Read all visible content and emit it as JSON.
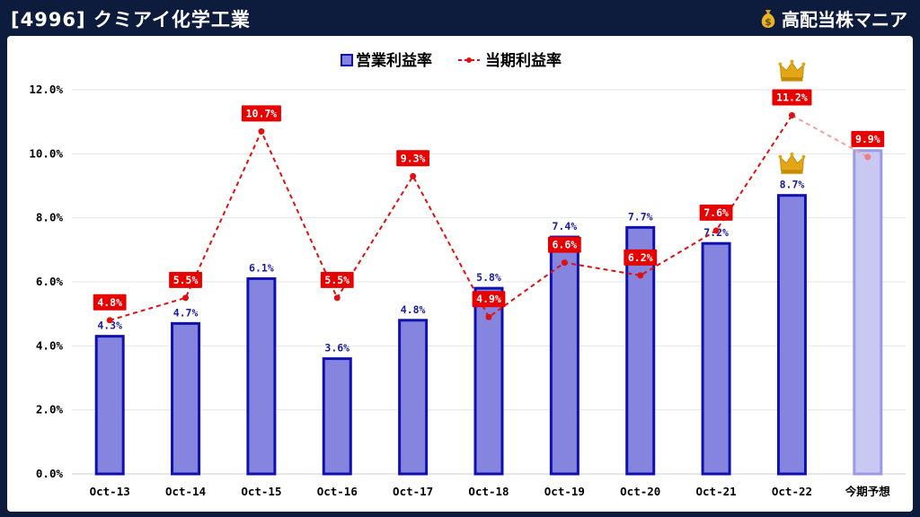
{
  "header": {
    "title": "[4996] クミアイ化学工業",
    "brand": "高配当株マニア",
    "brand_icon": "money-bag-icon"
  },
  "chart_data": {
    "type": "bar",
    "title": "",
    "xlabel": "",
    "ylabel": "",
    "categories": [
      "Oct-13",
      "Oct-14",
      "Oct-15",
      "Oct-16",
      "Oct-17",
      "Oct-18",
      "Oct-19",
      "Oct-20",
      "Oct-21",
      "Oct-22",
      "今期予想"
    ],
    "ylim": [
      0,
      12
    ],
    "yticks": [
      0,
      2,
      4,
      6,
      8,
      10,
      12
    ],
    "ytick_labels": [
      "0.0%",
      "2.0%",
      "4.0%",
      "6.0%",
      "8.0%",
      "10.0%",
      "12.0%"
    ],
    "grid": true,
    "legend_position": "top-center",
    "series": [
      {
        "name": "営業利益率",
        "type": "bar",
        "color": "#8585e0",
        "edge_color": "#1010b0",
        "forecast_color": "#c8c8f2",
        "values": [
          4.3,
          4.7,
          6.1,
          3.6,
          4.8,
          5.8,
          7.4,
          7.7,
          7.2,
          8.7,
          10.1
        ],
        "labels": [
          "4.3%",
          "4.7%",
          "6.1%",
          "3.6%",
          "4.8%",
          "5.8%",
          "7.4%",
          "7.7%",
          "7.2%",
          "8.7%",
          ""
        ]
      },
      {
        "name": "当期利益率",
        "type": "line",
        "color": "#e01010",
        "values": [
          4.8,
          5.5,
          10.7,
          5.5,
          9.3,
          4.9,
          6.6,
          6.2,
          7.6,
          11.2,
          9.9
        ],
        "labels": [
          "4.8%",
          "5.5%",
          "10.7%",
          "5.5%",
          "9.3%",
          "4.9%",
          "6.6%",
          "6.2%",
          "7.6%",
          "11.2%",
          "9.9%"
        ]
      }
    ],
    "annotations": [
      {
        "type": "crown",
        "series": "営業利益率",
        "category": "Oct-22",
        "icon": "crown-icon"
      },
      {
        "type": "crown",
        "series": "当期利益率",
        "category": "Oct-22",
        "icon": "crown-icon"
      }
    ]
  }
}
